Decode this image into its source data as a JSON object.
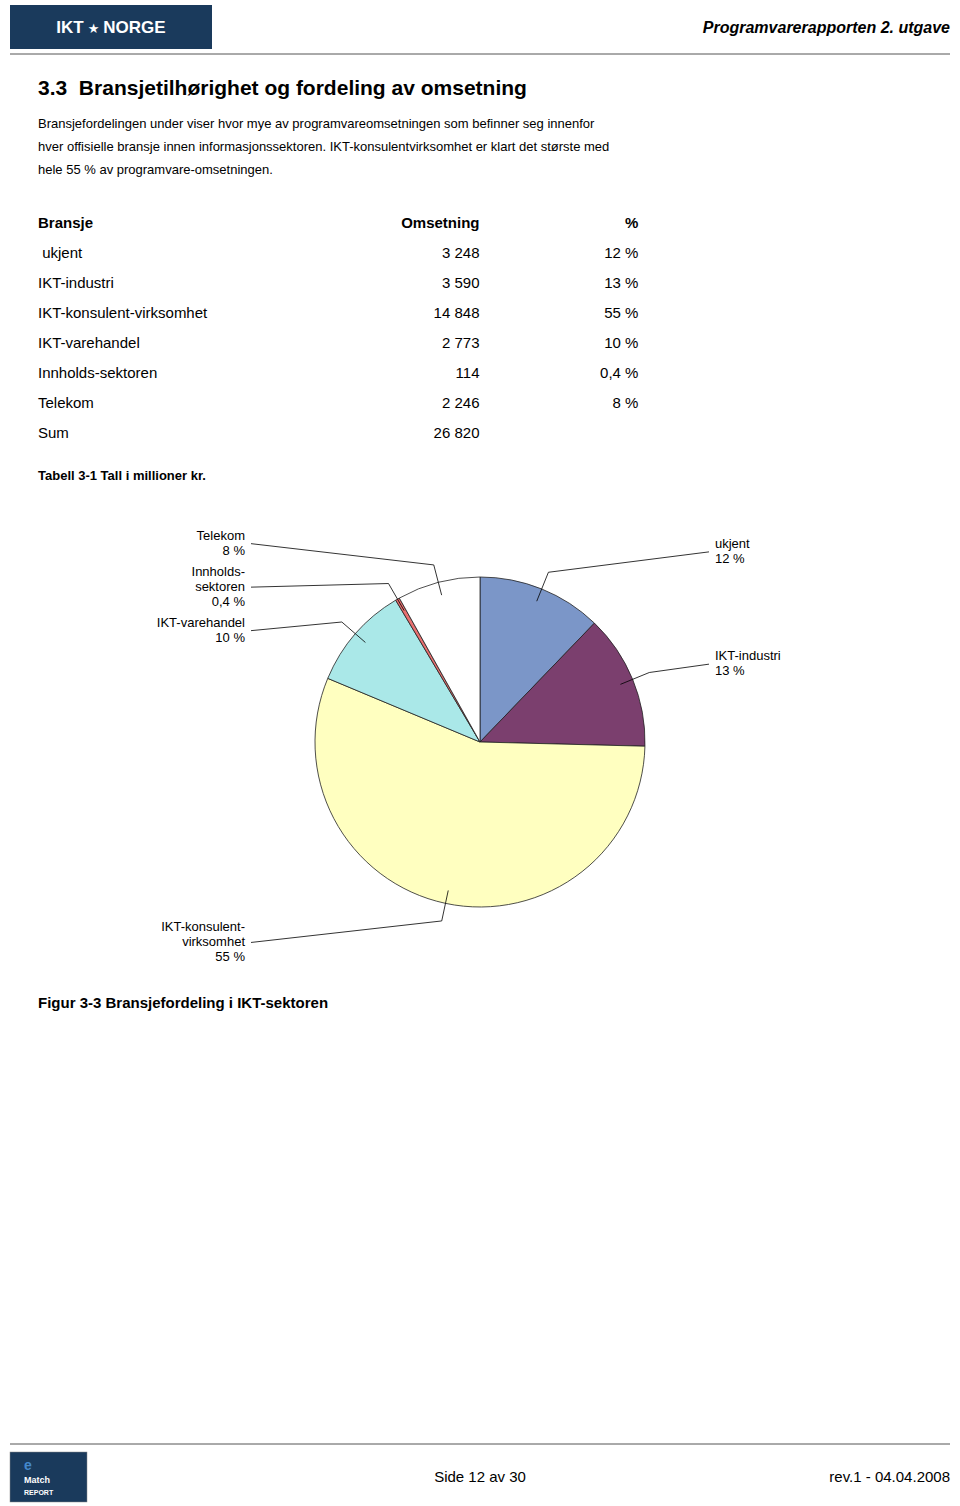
{
  "header": {
    "logo_text": [
      "IKT",
      "★",
      "NORGE"
    ],
    "title": "Programvarerapporten 2. utgave",
    "logo_bg": "#1a3a5c",
    "line_color": "#555555"
  },
  "section_title": "3.3  Bransjetilhørighet og fordeling av omsetning",
  "body": [
    "Bransjefordelingen under viser hvor mye av programvareomsetningen som befinner seg innenfor",
    "hver offisielle bransje innen informasjonssektoren. IKT-konsulentvirksomhet er klart det største med",
    "hele 55 % av programvare-omsetningen."
  ],
  "table": {
    "header": [
      "Bransje",
      "Omsetning",
      "%"
    ],
    "rows": [
      [
        " ukjent",
        "3 248",
        "12 %"
      ],
      [
        "IKT-industri",
        "3 590",
        "13 %"
      ],
      [
        "IKT-konsulent-virksomhet",
        "14 848",
        "55 %"
      ],
      [
        "IKT-varehandel",
        "2 773",
        "10 %"
      ],
      [
        "Innholds-sektoren",
        "114",
        "0,4 %"
      ],
      [
        "Telekom",
        "2 246",
        "8 %"
      ],
      [
        "Sum",
        "26 820"
      ]
    ],
    "note": "Tabell 3-1 Tall i millioner kr."
  },
  "chart_data": {
    "type": "pie",
    "title": "Figur 3-3 Bransjefordeling i IKT-sektoren",
    "categories": [
      "ukjent",
      "IKT-industri",
      "IKT-konsulent-\nvirksomhet",
      "IKT-varehandel",
      "Innholds-\nsektoren",
      "Telekom"
    ],
    "values": [
      12,
      13,
      55,
      10,
      0.4,
      8
    ],
    "value_labels": [
      "12 %",
      "13 %",
      "55 %",
      "10 %",
      "0,4 %",
      "8 %"
    ],
    "colors": [
      "#7b96c8",
      "#7b3f6e",
      "#ffffc0",
      "#aae8e8",
      "#e87070",
      "#ffffff"
    ],
    "data_labels": true
  },
  "footer": {
    "logo_text": [
      "e",
      "Match",
      "REPORT"
    ],
    "logo_bg": "#1a3a5c",
    "center": "Side 12 av 30",
    "right": "rev.1 - 04.04.2008",
    "line_color": "#555555"
  }
}
